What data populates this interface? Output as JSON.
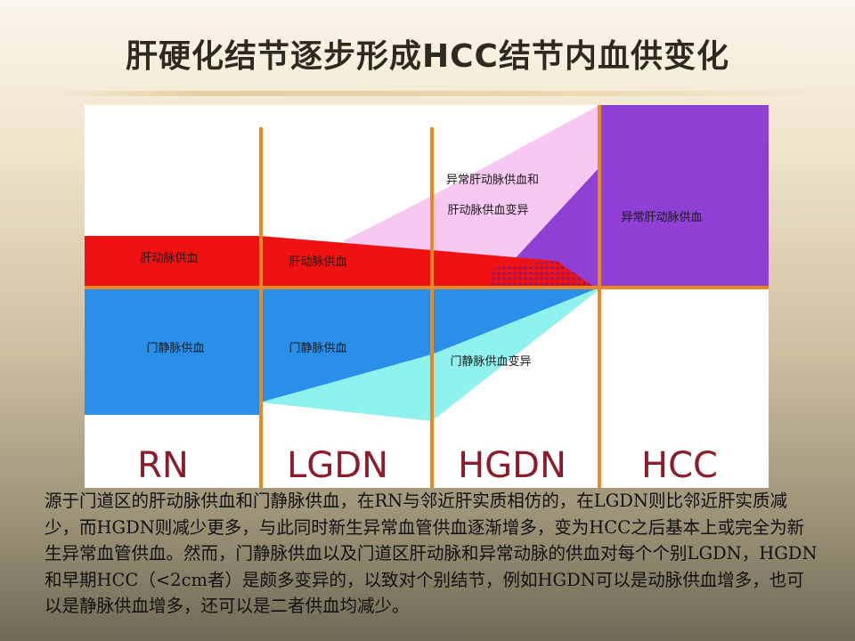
{
  "slide": {
    "title": "肝硬化结节逐步形成HCC结节内血供变化",
    "caption": "源于门道区的肝动脉供血和门静脉供血，在RN与邻近肝实质相仿的，在LGDN则比邻近肝实质减少，而HGDN则减少更多，与此同时新生异常血管供血逐渐增多，变为HCC之后基本上或完全为新生异常血管供血。然而，门静脉供血以及门道区肝动脉和异常动脉的供血对每个个别LGDN，HGDN和早期HCC（<2cm者）是颇多变异的，以致对个别结节，例如HGDN可以是动脉供血增多，也可以是静脉供血增多，还可以是二者供血均减少。"
  },
  "diagram": {
    "stages": [
      "RN",
      "LGDN",
      "HGDN",
      "HCC"
    ],
    "labels": {
      "hepatic_artery_rn": "肝动脉供血",
      "hepatic_artery_lgdn": "肝动脉供血",
      "portal_vein_rn": "门静脉供血",
      "portal_vein_lgdn": "门静脉供血",
      "portal_vein_variation": "门静脉供血变异",
      "abnormal_variation_line1": "异常肝动脉供血和",
      "abnormal_variation_line2": "肝动脉供血变异",
      "abnormal_artery_hcc": "异常肝动脉供血"
    },
    "colors": {
      "hepatic_artery": "#f01212",
      "portal_vein": "#2a8fe8",
      "portal_variation": "#8ff2ee",
      "abnormal_artery": "#8f3fd4",
      "abnormal_variation": "#f7c9f2",
      "divider": "#e88a22"
    }
  }
}
